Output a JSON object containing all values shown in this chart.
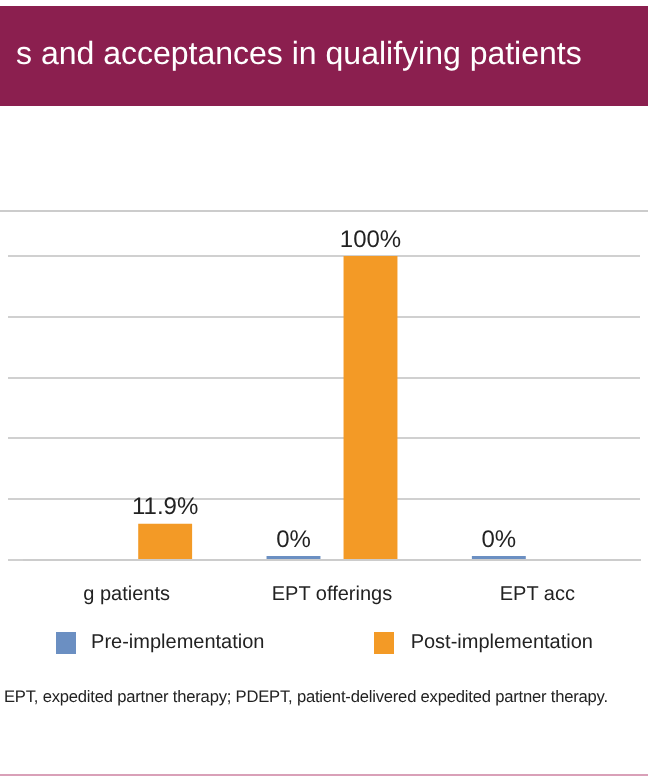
{
  "chart_data": {
    "type": "bar",
    "title": "s and acceptances in qualifying patients",
    "categories": [
      "g patients",
      "EPT offerings",
      "EPT acc"
    ],
    "series": [
      {
        "name": "Pre-implementation",
        "color": "#6b8fc2",
        "values": [
          null,
          0,
          0
        ],
        "value_labels": [
          null,
          "0%",
          "0%"
        ]
      },
      {
        "name": "Post-implementation",
        "color": "#f39a26",
        "values": [
          11.9,
          100,
          null
        ],
        "value_labels": [
          "11.9%",
          "100%",
          null
        ]
      }
    ],
    "ylim": [
      0,
      100
    ],
    "yticks": [
      0,
      20,
      40,
      60,
      80,
      100
    ],
    "tick_labels": "x",
    "grid": "y",
    "legend": "bottom",
    "annotations": [
      "EPT, expedited partner therapy; PDEPT, patient-delivered expedited partner therapy."
    ]
  }
}
